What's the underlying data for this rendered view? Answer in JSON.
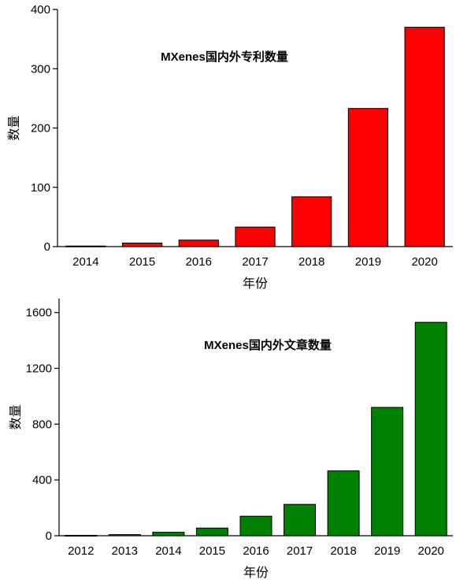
{
  "chart_data": [
    {
      "type": "bar",
      "title": "MXenes国内外专利数量",
      "xlabel": "年份",
      "ylabel": "数量",
      "categories": [
        "2014",
        "2015",
        "2016",
        "2017",
        "2018",
        "2019",
        "2020"
      ],
      "values": [
        1,
        6,
        11,
        33,
        84,
        233,
        370
      ],
      "ylim": [
        0,
        400
      ],
      "yticks": [
        "0",
        "100",
        "200",
        "300",
        "400"
      ],
      "bar_color": "#ff0000",
      "grid": false
    },
    {
      "type": "bar",
      "title": "MXenes国内外文章数量",
      "xlabel": "年份",
      "ylabel": "数量",
      "categories": [
        "2012",
        "2013",
        "2014",
        "2015",
        "2016",
        "2017",
        "2018",
        "2019",
        "2020"
      ],
      "values": [
        3,
        8,
        25,
        55,
        140,
        225,
        465,
        920,
        1530
      ],
      "ylim": [
        0,
        1700
      ],
      "yticks": [
        "0",
        "400",
        "800",
        "1200",
        "1600"
      ],
      "bar_color": "#008000",
      "grid": false
    }
  ]
}
